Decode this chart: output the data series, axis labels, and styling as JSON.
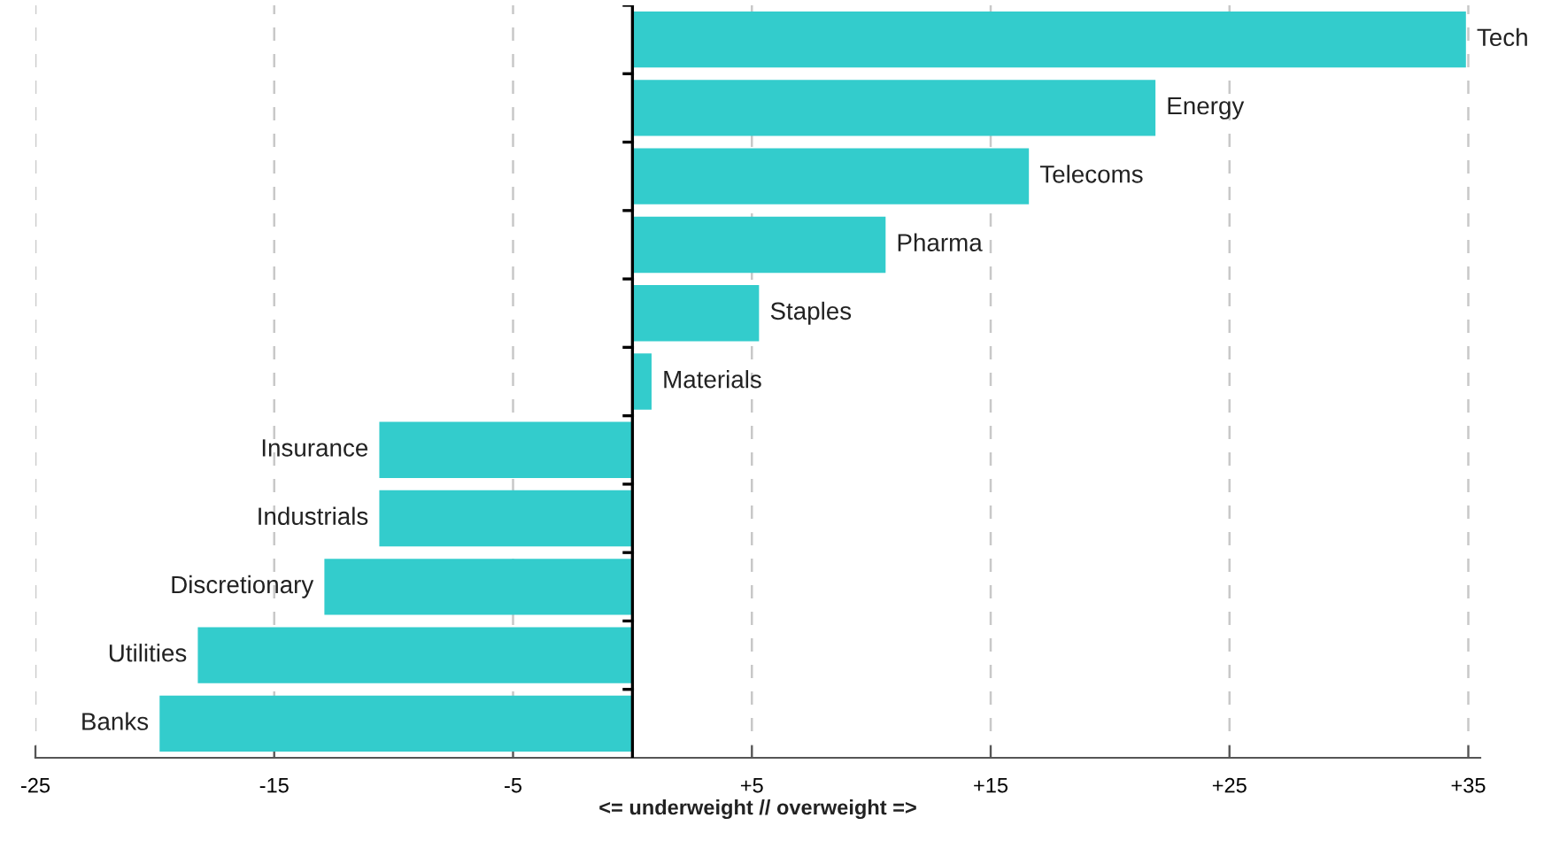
{
  "chart_data": {
    "type": "bar",
    "orientation": "horizontal",
    "xlabel": "<= underweight // overweight =>",
    "categories": [
      "Tech",
      "Energy",
      "Telecoms",
      "Pharma",
      "Staples",
      "Materials",
      "Insurance",
      "Industrials",
      "Discretionary",
      "Utilities",
      "Banks"
    ],
    "values": [
      34.9,
      21.9,
      16.6,
      10.6,
      5.3,
      0.8,
      -10.6,
      -10.6,
      -12.9,
      -18.2,
      -19.8
    ],
    "color": "#33cccc",
    "xlim": [
      -25,
      35.5
    ],
    "xticks": [
      -25,
      -15,
      -5,
      {
        "value": 5,
        "label": "+5"
      },
      {
        "value": 15,
        "label": "+15"
      },
      {
        "value": 25,
        "label": "+25"
      },
      {
        "value": 35,
        "label": "+35"
      }
    ],
    "grid": "x",
    "line_style": "dashed",
    "legend": false
  }
}
